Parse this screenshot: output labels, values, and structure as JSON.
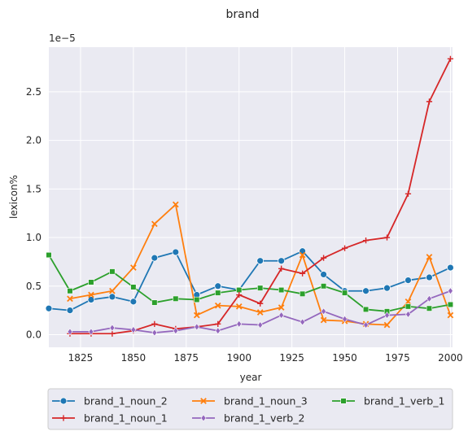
{
  "chart_data": {
    "type": "line",
    "title": "brand",
    "xlabel": "year",
    "ylabel": "lexicon%",
    "y_scale_label": "1e−5",
    "xlim": [
      1810,
      2001
    ],
    "ylim": [
      -0.13,
      2.96
    ],
    "xticks": [
      1825,
      1850,
      1875,
      1900,
      1925,
      1950,
      1975,
      2000
    ],
    "yticks": [
      0.0,
      0.5,
      1.0,
      1.5,
      2.0,
      2.5
    ],
    "ytick_labels": [
      "0.0",
      "0.5",
      "1.0",
      "1.5",
      "2.0",
      "2.5"
    ],
    "grid": true,
    "legend_position": "bottom",
    "legend_columns": 3,
    "series": [
      {
        "name": "brand_1_noun_2",
        "color": "#1f77b4",
        "marker": "circle",
        "x": [
          1810,
          1820,
          1830,
          1840,
          1850,
          1860,
          1870,
          1880,
          1890,
          1900,
          1910,
          1920,
          1930,
          1940,
          1950,
          1960,
          1970,
          1980,
          1990,
          2000
        ],
        "values": [
          0.27,
          0.25,
          0.36,
          0.39,
          0.34,
          0.79,
          0.85,
          0.41,
          0.5,
          0.46,
          0.76,
          0.76,
          0.86,
          0.62,
          0.45,
          0.45,
          0.48,
          0.56,
          0.59,
          0.69
        ]
      },
      {
        "name": "brand_1_noun_3",
        "color": "#ff7f0e",
        "marker": "x",
        "x": [
          1820,
          1830,
          1840,
          1850,
          1860,
          1870,
          1880,
          1890,
          1900,
          1910,
          1920,
          1930,
          1940,
          1950,
          1960,
          1970,
          1980,
          1990,
          2000
        ],
        "values": [
          0.37,
          0.41,
          0.45,
          0.69,
          1.14,
          1.34,
          0.2,
          0.3,
          0.29,
          0.23,
          0.28,
          0.82,
          0.15,
          0.14,
          0.11,
          0.1,
          0.34,
          0.8,
          0.2
        ]
      },
      {
        "name": "brand_1_verb_1",
        "color": "#2ca02c",
        "marker": "square",
        "x": [
          1810,
          1820,
          1830,
          1840,
          1850,
          1860,
          1870,
          1880,
          1890,
          1900,
          1910,
          1920,
          1930,
          1940,
          1950,
          1960,
          1970,
          1980,
          1990,
          2000
        ],
        "values": [
          0.82,
          0.45,
          0.54,
          0.65,
          0.49,
          0.33,
          0.37,
          0.36,
          0.43,
          0.46,
          0.48,
          0.46,
          0.42,
          0.5,
          0.43,
          0.26,
          0.24,
          0.29,
          0.27,
          0.31
        ]
      },
      {
        "name": "brand_1_noun_1",
        "color": "#d62728",
        "marker": "plus",
        "x": [
          1820,
          1830,
          1840,
          1850,
          1860,
          1870,
          1880,
          1890,
          1900,
          1910,
          1920,
          1930,
          1940,
          1950,
          1960,
          1970,
          1980,
          1990,
          2000
        ],
        "values": [
          0.01,
          0.01,
          0.01,
          0.04,
          0.11,
          0.06,
          0.08,
          0.11,
          0.41,
          0.32,
          0.68,
          0.63,
          0.79,
          0.89,
          0.97,
          1.0,
          1.45,
          2.4,
          2.84
        ]
      },
      {
        "name": "brand_1_verb_2",
        "color": "#9467bd",
        "marker": "diamond",
        "x": [
          1820,
          1830,
          1840,
          1850,
          1860,
          1870,
          1880,
          1890,
          1900,
          1910,
          1920,
          1930,
          1940,
          1950,
          1960,
          1970,
          1980,
          1990,
          2000
        ],
        "values": [
          0.03,
          0.03,
          0.07,
          0.05,
          0.02,
          0.04,
          0.08,
          0.04,
          0.11,
          0.1,
          0.2,
          0.13,
          0.24,
          0.16,
          0.1,
          0.2,
          0.21,
          0.37,
          0.45
        ]
      }
    ]
  }
}
